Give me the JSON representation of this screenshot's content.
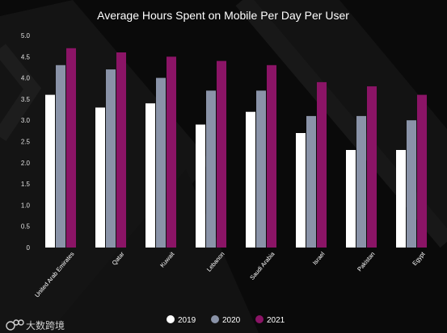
{
  "chart_data": {
    "type": "bar",
    "title": "Average Hours Spent on Mobile Per Day Per User",
    "xlabel": "",
    "ylabel": "",
    "ylim": [
      0,
      5
    ],
    "yticks": [
      "0",
      "0.5",
      "1.0",
      "1.5",
      "2.0",
      "2.5",
      "3.0",
      "3.5",
      "4.0",
      "4.5",
      "5.0"
    ],
    "categories": [
      "United Arab Emirates",
      "Qatar",
      "Kuwait",
      "Lebanon",
      "Saudi Arabia",
      "Israel",
      "Pakistan",
      "Egypt"
    ],
    "series": [
      {
        "name": "2019",
        "color": "#ffffff",
        "values": [
          3.6,
          3.3,
          3.4,
          2.9,
          3.2,
          2.7,
          2.3,
          2.3
        ]
      },
      {
        "name": "2020",
        "color": "#8a93a8",
        "values": [
          4.3,
          4.2,
          4.0,
          3.7,
          3.7,
          3.1,
          3.1,
          3.0
        ]
      },
      {
        "name": "2021",
        "color": "#8b1466",
        "values": [
          4.7,
          4.6,
          4.5,
          4.4,
          4.3,
          3.9,
          3.8,
          3.6
        ]
      }
    ],
    "grid": false,
    "legend_position": "bottom-center"
  },
  "watermark": {
    "text": "大数跨境",
    "icon": "brand-logo-icon"
  }
}
